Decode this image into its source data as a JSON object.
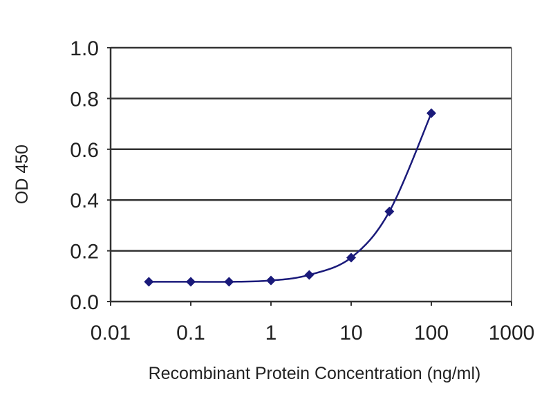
{
  "chart_data": {
    "type": "line",
    "title": "",
    "xlabel": "Recombinant Protein Concentration (ng/ml)",
    "ylabel": "OD 450",
    "x_scale": "log",
    "xlim": [
      0.01,
      1000
    ],
    "ylim": [
      0.0,
      1.0
    ],
    "x_ticks": [
      "0.01",
      "0.1",
      "1",
      "10",
      "100",
      "1000"
    ],
    "y_ticks": [
      "0.0",
      "0.2",
      "0.4",
      "0.6",
      "0.8",
      "1.0"
    ],
    "grid": "horizontal",
    "smooth": true,
    "marker": "diamond",
    "series": [
      {
        "color": "#1a1a7a",
        "x": [
          0.03,
          0.1,
          0.3,
          1,
          3,
          10,
          30,
          100
        ],
        "y": [
          0.078,
          0.078,
          0.078,
          0.083,
          0.105,
          0.173,
          0.355,
          0.742
        ]
      }
    ]
  }
}
